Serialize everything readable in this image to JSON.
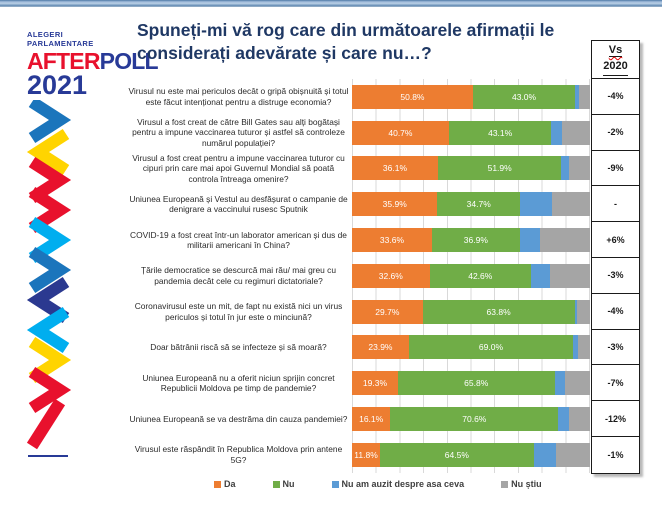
{
  "logo": {
    "line1": "ALEGERI",
    "line2": "PARLAMENTARE",
    "word_red": "AFTER",
    "word_blue": "POLL",
    "year": "2021",
    "color_blue": "#283A97",
    "color_red": "#E8112D"
  },
  "title": {
    "line1": "Spuneți-mi vă rog care din următoarele afirmații le",
    "line2": "considerați adevărate și care nu…?",
    "color": "#1F3864"
  },
  "vs_column": {
    "header_line1": "Vs",
    "header_line2": "2020"
  },
  "chart_data": {
    "type": "bar",
    "orientation": "horizontal",
    "stacked": true,
    "title": "Spuneți-mi vă rog care din următoarele afirmații le considerați adevărate și care nu…?",
    "xlabel": "",
    "ylabel": "",
    "xlim": [
      0,
      100
    ],
    "grid": true,
    "legend_position": "bottom",
    "categories": [
      "Virusul nu este mai periculos decât o gripă obișnuită și totul este făcut intenționat pentru a distruge economia?",
      "Virusul a fost creat de către Bill Gates sau alți bogătași pentru a impune vaccinarea tuturor și astfel să controleze numărul populației?",
      "Virusul a fost creat pentru a impune vaccinarea tuturor cu cipuri prin care mai apoi Guvernul Mondial să poată controla întreaga omenire?",
      "Uniunea Europeană și Vestul au desfășurat o campanie de denigrare a vaccinului rusesc Sputnik",
      "COVID-19 a fost creat într-un laborator american și dus de militarii americani în China?",
      "Țările democratice se descurcă mai rău/ mai greu cu pandemia decât cele cu regimuri dictatoriale?",
      "Coronavirusul este un mit, de fapt nu există nici un virus periculos și totul în jur este o minciună?",
      "Doar bătrânii riscă să se infecteze și să moară?",
      "Uniunea Europeană nu a oferit niciun sprijin concret Republicii Moldova pe timp de pandemie?",
      "Uniunea Europeană se va destrăma din cauza pandemiei?",
      "Virusul este răspândit în Republica Moldova prin antene 5G?"
    ],
    "series": [
      {
        "key": "da",
        "name": "Da",
        "color": "#ED7D31",
        "labels_visible": true,
        "values": [
          50.8,
          40.7,
          36.1,
          35.9,
          33.6,
          32.6,
          29.7,
          23.9,
          19.3,
          16.1,
          11.8
        ]
      },
      {
        "key": "nu",
        "name": "Nu",
        "color": "#70AD47",
        "labels_visible": true,
        "values": [
          43.0,
          43.1,
          51.9,
          34.7,
          36.9,
          42.6,
          63.8,
          69.0,
          65.8,
          70.6,
          64.5
        ]
      },
      {
        "key": "nu-am-auzit",
        "name": "Nu am auzit despre asa ceva",
        "color": "#5B9BD5",
        "labels_visible": false,
        "values_estimated_from_bar_widths": true,
        "values": [
          1.5,
          4.5,
          3.0,
          13.3,
          8.5,
          8.0,
          1.2,
          2.1,
          4.3,
          4.4,
          9.5
        ]
      },
      {
        "key": "nu-stiu",
        "name": "Nu știu",
        "color": "#A5A5A5",
        "labels_visible": false,
        "values_estimated_from_bar_widths": true,
        "values": [
          4.7,
          11.7,
          9.0,
          16.1,
          21.0,
          16.8,
          5.3,
          5.0,
          10.6,
          8.9,
          14.2
        ]
      }
    ],
    "vs_2020": [
      "-4%",
      "-2%",
      "-9%",
      "-",
      "+6%",
      "-3%",
      "-4%",
      "-3%",
      "-7%",
      "-12%",
      "-1%"
    ]
  },
  "decoration": {
    "chevron_colors": {
      "yellow": "#FFD400",
      "red": "#E8112D",
      "cyan": "#00AEEF",
      "blue": "#1B75BC",
      "navy": "#2B3990"
    }
  }
}
